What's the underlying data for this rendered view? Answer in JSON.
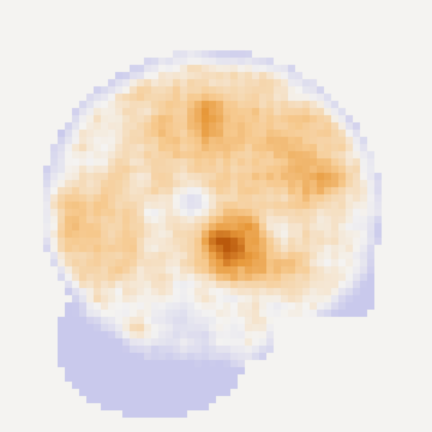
{
  "image": {
    "subject": "brain-activation-map-sagittal-slice",
    "colormap": {
      "negative": "#c9c9ec",
      "background": "#f4f3f1",
      "positive_low": "#f6c98e",
      "positive_mid": "#e89a3c",
      "positive_high": "#b8560a"
    }
  }
}
